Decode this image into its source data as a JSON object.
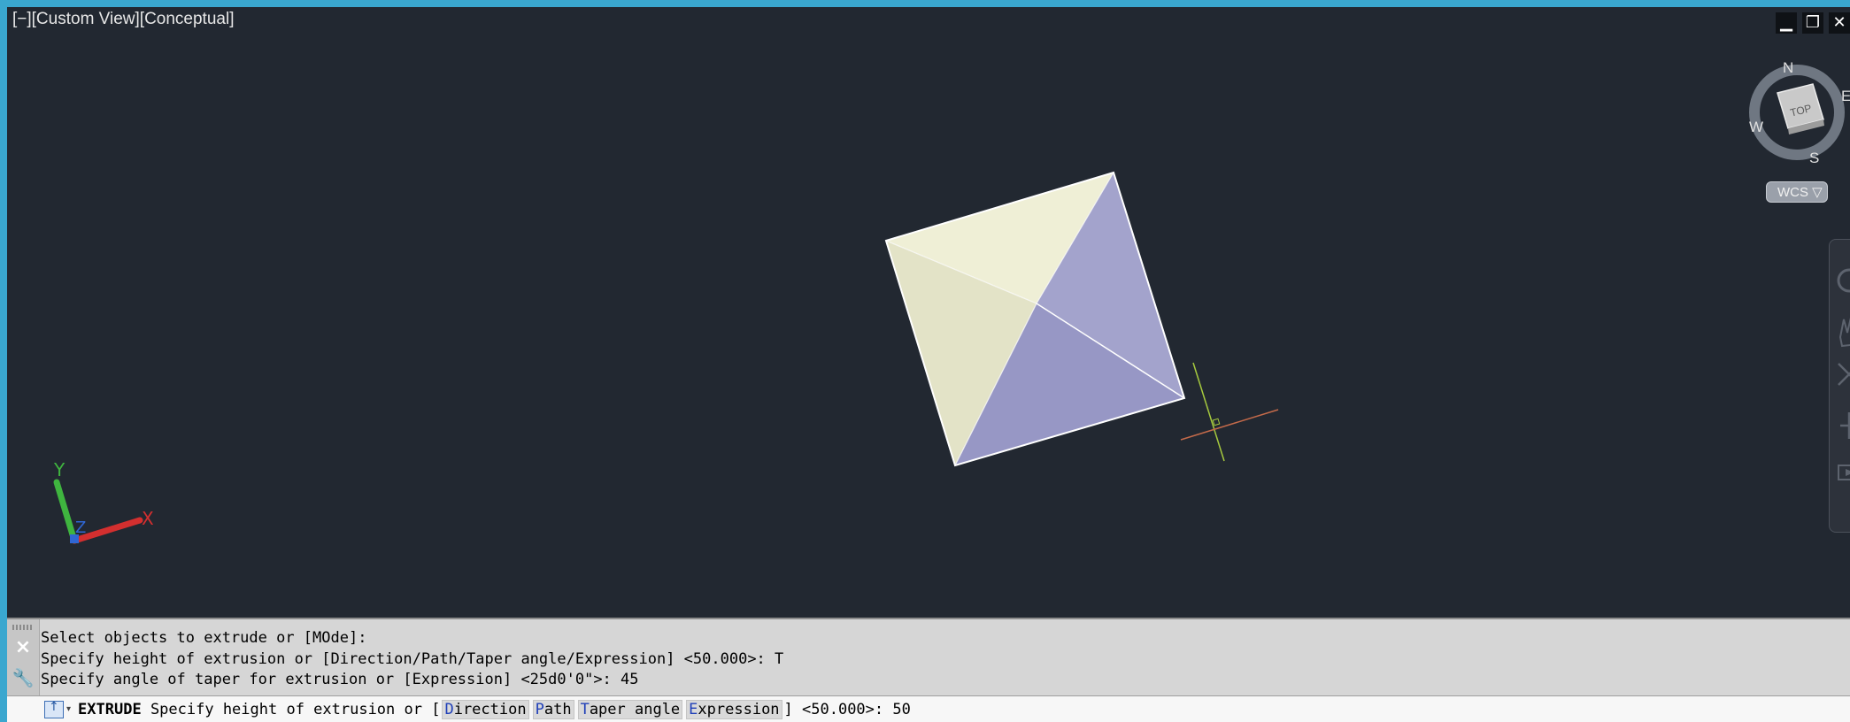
{
  "viewport": {
    "label": "[−][Custom View][Conceptual]",
    "controls": [
      "▁",
      "❐",
      "✕"
    ],
    "viewcube": {
      "face": "TOP",
      "north": "N",
      "south": "S",
      "east": "E",
      "west": "W",
      "wcs_label": "WCS ▽"
    },
    "ucs": {
      "x": "X",
      "y": "Y",
      "z": "Z"
    },
    "colors": {
      "background": "#222831",
      "face_light": "#efefd6",
      "face_blue": "#9d9dc8",
      "ucs_x": "#d32f2f",
      "ucs_y": "#3fb53f",
      "ucs_z": "#2f66d3"
    }
  },
  "command_line": {
    "close_icon": "close-icon",
    "settings_icon": "wrench-icon",
    "history": [
      "Select objects to extrude or [MOde]:",
      "Specify height of extrusion or [Direction/Path/Taper angle/Expression] <50.000>: T",
      "Specify angle of taper for extrusion or [Expression] <25d0'0\">: 45"
    ],
    "input": {
      "command": "EXTRUDE",
      "prompt": "Specify height of extrusion or [",
      "options": [
        {
          "key": "D",
          "rest": "irection"
        },
        {
          "key": "P",
          "rest": "ath"
        },
        {
          "key": "T",
          "rest": "aper angle"
        },
        {
          "key": "E",
          "rest": "xpression"
        }
      ],
      "suffix": "] <50.000>:",
      "value": "50"
    }
  }
}
